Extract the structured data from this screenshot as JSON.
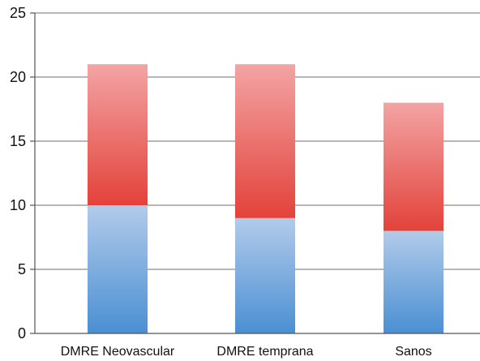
{
  "chart_data": {
    "type": "bar",
    "stacked": true,
    "categories": [
      "DMRE Neovascular",
      "DMRE temprana",
      "Sanos"
    ],
    "series": [
      {
        "values": [
          10,
          9,
          8
        ],
        "color_dark": "#4a8fd3",
        "color_light": "#b2cbea"
      },
      {
        "values": [
          11,
          12,
          10
        ],
        "color_dark": "#e3423a",
        "color_light": "#f3a4a4"
      }
    ],
    "ylim": [
      0,
      25
    ],
    "yticks": [
      0,
      5,
      10,
      15,
      20,
      25
    ],
    "grid": true,
    "legend": "none"
  }
}
